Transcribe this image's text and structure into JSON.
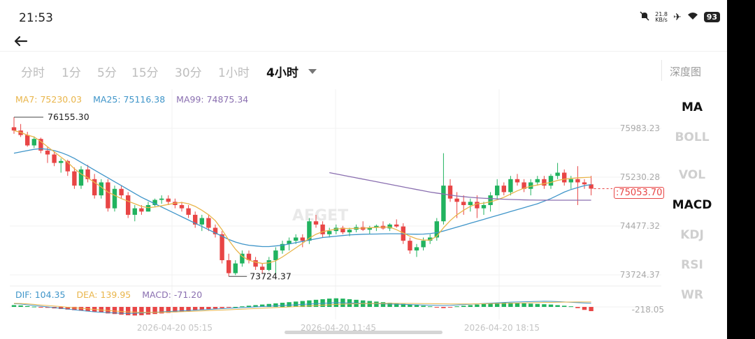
{
  "status_bar": {
    "time": "21:53",
    "net_speed_value": "21.8",
    "net_speed_unit": "KB/s",
    "battery": "93"
  },
  "tabs": [
    {
      "label": "分时",
      "active": false
    },
    {
      "label": "1分",
      "active": false
    },
    {
      "label": "5分",
      "active": false
    },
    {
      "label": "15分",
      "active": false
    },
    {
      "label": "30分",
      "active": false
    },
    {
      "label": "1小时",
      "active": false
    },
    {
      "label": "4小时",
      "active": true
    }
  ],
  "depth_label": "深度图",
  "indicators": [
    {
      "label": "MA",
      "active": true
    },
    {
      "label": "BOLL",
      "active": false
    },
    {
      "label": "VOL",
      "active": false
    },
    {
      "label": "MACD",
      "active": true
    },
    {
      "label": "KDJ",
      "active": false
    },
    {
      "label": "RSI",
      "active": false
    },
    {
      "label": "WR",
      "active": false
    }
  ],
  "ma_legend": [
    {
      "label": "MA7: 75230.03",
      "color": "#e9b54a"
    },
    {
      "label": "MA25: 75116.38",
      "color": "#3f95c9"
    },
    {
      "label": "MA99: 74875.34",
      "color": "#8a6fb0"
    }
  ],
  "macd_legend": [
    {
      "label": "DIF: 104.35",
      "color": "#3f95c9"
    },
    {
      "label": "DEA: 139.95",
      "color": "#e9b54a"
    },
    {
      "label": "MACD: -71.20",
      "color": "#8a6fb0"
    }
  ],
  "watermark": "AEGET",
  "chart_data": {
    "type": "candlestick",
    "y_axis_labels": [
      "75983.23",
      "75230.28",
      "74477.32",
      "73724.37"
    ],
    "y_axis_values": [
      75983.23,
      75230.28,
      74477.32,
      73724.37
    ],
    "x_axis_labels": [
      "2026-04-20 05:15",
      "2026-04-20 11:45",
      "2026-04-20 18:15"
    ],
    "high_label": "76155.30",
    "low_label": "73724.37",
    "current_price": ":75053.70",
    "macd_axis_label": "-218.05",
    "colors": {
      "up": "#21b35f",
      "down": "#e84545",
      "ma7": "#e9b54a",
      "ma25": "#3f95c9",
      "ma99": "#8a6fb0"
    },
    "candles": [
      [
        76000,
        76155,
        75900,
        75950
      ],
      [
        75950,
        76050,
        75850,
        75880
      ],
      [
        75880,
        75930,
        75700,
        75720
      ],
      [
        75720,
        75860,
        75680,
        75820
      ],
      [
        75820,
        75840,
        75600,
        75640
      ],
      [
        75640,
        75700,
        75450,
        75580
      ],
      [
        75580,
        75620,
        75400,
        75450
      ],
      [
        75450,
        75520,
        75300,
        75480
      ],
      [
        75480,
        75500,
        75250,
        75320
      ],
      [
        75320,
        75380,
        75050,
        75100
      ],
      [
        75100,
        75400,
        75050,
        75350
      ],
      [
        75350,
        75420,
        75150,
        75200
      ],
      [
        75200,
        75280,
        74900,
        74950
      ],
      [
        74950,
        75200,
        74900,
        75150
      ],
      [
        75150,
        75200,
        74700,
        74750
      ],
      [
        74750,
        75100,
        74700,
        75050
      ],
      [
        75050,
        75100,
        74900,
        74950
      ],
      [
        74950,
        75000,
        74600,
        74650
      ],
      [
        74650,
        74800,
        74550,
        74750
      ],
      [
        74750,
        74800,
        74650,
        74700
      ],
      [
        74700,
        74850,
        74700,
        74800
      ],
      [
        74800,
        74900,
        74780,
        74880
      ],
      [
        74880,
        74950,
        74820,
        74900
      ],
      [
        74900,
        74950,
        74800,
        74850
      ],
      [
        74850,
        74900,
        74750,
        74800
      ],
      [
        74800,
        74850,
        74700,
        74750
      ],
      [
        74750,
        74800,
        74600,
        74650
      ],
      [
        74650,
        74700,
        74450,
        74500
      ],
      [
        74500,
        74650,
        74400,
        74600
      ],
      [
        74600,
        74650,
        74400,
        74450
      ],
      [
        74450,
        74500,
        74300,
        74350
      ],
      [
        74350,
        74400,
        73900,
        73950
      ],
      [
        73950,
        74050,
        73700,
        73750
      ],
      [
        73750,
        73950,
        73720,
        73900
      ],
      [
        73900,
        74100,
        73850,
        74050
      ],
      [
        74050,
        74100,
        73900,
        73950
      ],
      [
        73950,
        74000,
        73800,
        73850
      ],
      [
        73850,
        73900,
        73750,
        73800
      ],
      [
        73800,
        74000,
        73780,
        73950
      ],
      [
        73950,
        74150,
        73724,
        74100
      ],
      [
        74100,
        74250,
        74050,
        74200
      ],
      [
        74200,
        74300,
        74100,
        74250
      ],
      [
        74250,
        74350,
        74200,
        74300
      ],
      [
        74300,
        74350,
        74150,
        74250
      ],
      [
        74250,
        74600,
        74200,
        74550
      ],
      [
        74550,
        74650,
        74450,
        74500
      ],
      [
        74500,
        74550,
        74300,
        74350
      ],
      [
        74350,
        74450,
        74300,
        74400
      ],
      [
        74400,
        74500,
        74350,
        74450
      ],
      [
        74450,
        74480,
        74350,
        74380
      ],
      [
        74380,
        74450,
        74320,
        74420
      ],
      [
        74420,
        74500,
        74380,
        74460
      ],
      [
        74460,
        74550,
        74400,
        74420
      ],
      [
        74420,
        74480,
        74350,
        74450
      ],
      [
        74450,
        74500,
        74400,
        74480
      ],
      [
        74480,
        74550,
        74420,
        74440
      ],
      [
        74440,
        74520,
        74400,
        74500
      ],
      [
        74500,
        74580,
        74450,
        74470
      ],
      [
        74470,
        74520,
        74200,
        74250
      ],
      [
        74250,
        74300,
        74050,
        74100
      ],
      [
        74100,
        74200,
        74000,
        74150
      ],
      [
        74150,
        74300,
        74100,
        74250
      ],
      [
        74250,
        74350,
        74200,
        74300
      ],
      [
        74300,
        74600,
        74250,
        74550
      ],
      [
        74550,
        75600,
        74500,
        75100
      ],
      [
        75100,
        75200,
        74850,
        74900
      ],
      [
        74900,
        75000,
        74600,
        74850
      ],
      [
        74850,
        74950,
        74650,
        74800
      ],
      [
        74800,
        74900,
        74700,
        74850
      ],
      [
        74850,
        74950,
        74600,
        74750
      ],
      [
        74750,
        74850,
        74650,
        74800
      ],
      [
        74800,
        75000,
        74700,
        74950
      ],
      [
        74950,
        75200,
        74900,
        75100
      ],
      [
        75100,
        75150,
        74950,
        75000
      ],
      [
        75000,
        75250,
        74950,
        75200
      ],
      [
        75200,
        75280,
        75100,
        75150
      ],
      [
        75150,
        75200,
        75000,
        75050
      ],
      [
        75050,
        75200,
        74950,
        75150
      ],
      [
        75150,
        75250,
        75100,
        75200
      ],
      [
        75200,
        75250,
        75050,
        75100
      ],
      [
        75100,
        75280,
        75050,
        75250
      ],
      [
        75250,
        75450,
        75200,
        75300
      ],
      [
        75300,
        75350,
        75100,
        75150
      ],
      [
        75150,
        75250,
        75050,
        75200
      ],
      [
        75200,
        75400,
        74800,
        75150
      ],
      [
        75150,
        75200,
        75050,
        75120
      ],
      [
        75120,
        75250,
        74950,
        75053
      ]
    ],
    "ma7": [
      75950,
      75920,
      75880,
      75850,
      75780,
      75700,
      75620,
      75540,
      75460,
      75360,
      75280,
      75220,
      75150,
      75080,
      75000,
      74950,
      74900,
      74860,
      74820,
      74780,
      74760,
      74770,
      74790,
      74810,
      74830,
      74840,
      74820,
      74780,
      74720,
      74650,
      74560,
      74420,
      74260,
      74120,
      74010,
      73950,
      73920,
      73900,
      73910,
      73940,
      74000,
      74070,
      74140,
      74210,
      74290,
      74350,
      74390,
      74410,
      74430,
      74440,
      74440,
      74440,
      74445,
      74450,
      74455,
      74460,
      74460,
      74420,
      74370,
      74320,
      74280,
      74260,
      74260,
      74320,
      74450,
      74560,
      74650,
      74720,
      74780,
      74820,
      74830,
      74850,
      74880,
      74920,
      74970,
      75020,
      75060,
      75090,
      75110,
      75130,
      75150,
      75180,
      75200,
      75210,
      75220,
      75225,
      75230
    ],
    "ma25": [
      75600,
      75620,
      75640,
      75660,
      75670,
      75660,
      75640,
      75610,
      75570,
      75520,
      75460,
      75400,
      75340,
      75280,
      75220,
      75160,
      75100,
      75040,
      74980,
      74920,
      74870,
      74820,
      74770,
      74720,
      74670,
      74620,
      74570,
      74520,
      74470,
      74420,
      74370,
      74320,
      74270,
      74230,
      74200,
      74180,
      74170,
      74160,
      74160,
      74170,
      74180,
      74200,
      74220,
      74240,
      74260,
      74280,
      74300,
      74310,
      74320,
      74330,
      74340,
      74345,
      74350,
      74352,
      74354,
      74356,
      74358,
      74358,
      74356,
      74352,
      74350,
      74352,
      74360,
      74375,
      74400,
      74430,
      74460,
      74490,
      74520,
      74550,
      74580,
      74610,
      74640,
      74670,
      74700,
      74730,
      74760,
      74790,
      74820,
      74860,
      74900,
      74950,
      75000,
      75040,
      75070,
      75100,
      75116
    ],
    "ma99_start": 47,
    "ma99": [
      75300,
      75280,
      75260,
      75240,
      75220,
      75200,
      75180,
      75160,
      75140,
      75120,
      75100,
      75080,
      75060,
      75040,
      75020,
      75000,
      74985,
      74970,
      74955,
      74940,
      74930,
      74920,
      74912,
      74905,
      74900,
      74895,
      74890,
      74886,
      74883,
      74880,
      74878,
      74877,
      74876,
      74875,
      74875,
      74875,
      74875,
      74875,
      74875,
      74875
    ],
    "macd_hist": [
      30,
      25,
      15,
      5,
      -5,
      -15,
      -25,
      -35,
      -45,
      -55,
      -65,
      -75,
      -85,
      -95,
      -110,
      -120,
      -130,
      -140,
      -145,
      -140,
      -130,
      -120,
      -110,
      -100,
      -90,
      -80,
      -70,
      -60,
      -50,
      -40,
      -30,
      -20,
      -10,
      0,
      10,
      20,
      30,
      40,
      50,
      60,
      70,
      80,
      90,
      100,
      110,
      120,
      130,
      140,
      145,
      140,
      130,
      120,
      110,
      100,
      90,
      80,
      70,
      60,
      50,
      40,
      30,
      20,
      10,
      -10,
      -20,
      -10,
      10,
      20,
      30,
      40,
      50,
      60,
      70,
      75,
      70,
      65,
      60,
      55,
      50,
      45,
      40,
      30,
      20,
      10,
      -20,
      -50,
      -71
    ],
    "dif": [
      90,
      80,
      60,
      40,
      20,
      0,
      -20,
      -40,
      -60,
      -80,
      -100,
      -120,
      -140,
      -150,
      -160,
      -170,
      -180,
      -185,
      -180,
      -170,
      -160,
      -150,
      -140,
      -130,
      -120,
      -110,
      -100,
      -90,
      -80,
      -70,
      -60,
      -50,
      -40,
      -30,
      -20,
      -10,
      0,
      10,
      20,
      30,
      40,
      50,
      60,
      70,
      80,
      90,
      100,
      110,
      120,
      115,
      110,
      105,
      100,
      95,
      90,
      85,
      80,
      75,
      70,
      65,
      60,
      55,
      50,
      45,
      40,
      45,
      55,
      65,
      75,
      85,
      95,
      105,
      115,
      125,
      135,
      140,
      145,
      150,
      155,
      160,
      158,
      150,
      140,
      130,
      120,
      110,
      104
    ],
    "dea": [
      100,
      95,
      85,
      70,
      55,
      40,
      25,
      10,
      -10,
      -25,
      -40,
      -55,
      -70,
      -85,
      -100,
      -115,
      -130,
      -140,
      -148,
      -152,
      -155,
      -155,
      -152,
      -148,
      -142,
      -135,
      -128,
      -120,
      -112,
      -104,
      -96,
      -88,
      -80,
      -72,
      -64,
      -55,
      -46,
      -37,
      -28,
      -19,
      -10,
      0,
      10,
      20,
      30,
      40,
      50,
      60,
      70,
      78,
      84,
      89,
      93,
      96,
      98,
      99,
      100,
      100,
      99,
      98,
      96,
      94,
      92,
      89,
      86,
      84,
      83,
      83,
      84,
      86,
      89,
      92,
      96,
      100,
      104,
      108,
      112,
      116,
      120,
      124,
      128,
      132,
      135,
      137,
      139,
      140,
      140
    ]
  }
}
